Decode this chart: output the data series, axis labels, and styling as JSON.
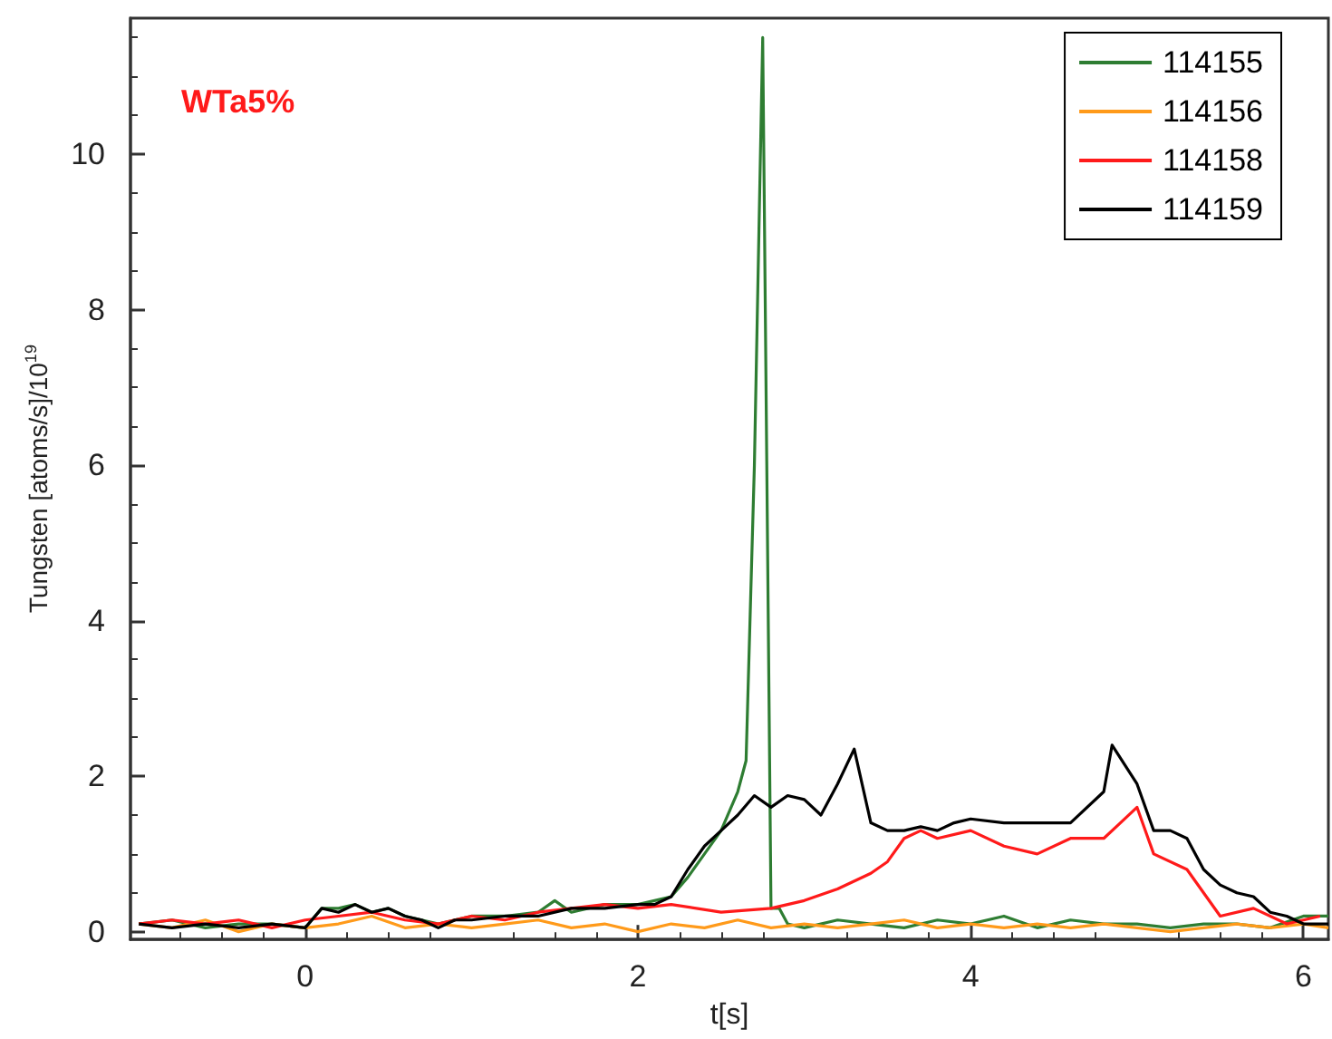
{
  "chart_data": {
    "type": "line",
    "title": "WTa5%",
    "xlabel": "t[s]",
    "ylabel": "Tungsten [atoms/s]/10$^{19}$",
    "xlim": [
      -1.05,
      6.15
    ],
    "ylim": [
      -0.1,
      11.75
    ],
    "xticks": [
      0,
      2,
      4,
      6
    ],
    "yticks": [
      0,
      2,
      4,
      6,
      8,
      10
    ],
    "legend": "top right",
    "grid": false,
    "line_style": "solid",
    "marker": "none",
    "series": [
      {
        "name": "114155",
        "color": "#2e7d32",
        "x": [
          -1,
          -0.8,
          -0.6,
          -0.4,
          -0.2,
          0,
          0.1,
          0.2,
          0.3,
          0.4,
          0.5,
          0.6,
          0.7,
          0.8,
          0.9,
          1.0,
          1.2,
          1.4,
          1.5,
          1.6,
          1.8,
          2.0,
          2.1,
          2.2,
          2.3,
          2.4,
          2.5,
          2.6,
          2.65,
          2.7,
          2.75,
          2.8,
          2.85,
          2.9,
          3.0,
          3.2,
          3.4,
          3.6,
          3.8,
          4.0,
          4.2,
          4.4,
          4.6,
          4.8,
          5.0,
          5.2,
          5.4,
          5.6,
          5.8,
          6.0,
          6.15
        ],
        "values": [
          0.1,
          0.15,
          0.05,
          0.1,
          0.1,
          0.05,
          0.3,
          0.3,
          0.35,
          0.25,
          0.3,
          0.2,
          0.15,
          0.1,
          0.15,
          0.2,
          0.2,
          0.25,
          0.4,
          0.25,
          0.35,
          0.35,
          0.4,
          0.45,
          0.7,
          1.0,
          1.3,
          1.8,
          2.2,
          6.0,
          11.5,
          0.3,
          0.3,
          0.1,
          0.05,
          0.15,
          0.1,
          0.05,
          0.15,
          0.1,
          0.2,
          0.05,
          0.15,
          0.1,
          0.1,
          0.05,
          0.1,
          0.1,
          0.05,
          0.2,
          0.2
        ]
      },
      {
        "name": "114156",
        "color": "#ff9a1a",
        "x": [
          -1,
          -0.8,
          -0.6,
          -0.4,
          -0.2,
          0,
          0.2,
          0.4,
          0.6,
          0.8,
          1.0,
          1.2,
          1.4,
          1.6,
          1.8,
          2.0,
          2.2,
          2.4,
          2.6,
          2.8,
          3.0,
          3.2,
          3.4,
          3.6,
          3.8,
          4.0,
          4.2,
          4.4,
          4.6,
          4.8,
          5.0,
          5.2,
          5.4,
          5.6,
          5.8,
          6.0,
          6.15
        ],
        "values": [
          0.1,
          0.05,
          0.15,
          0.0,
          0.1,
          0.05,
          0.1,
          0.2,
          0.05,
          0.1,
          0.05,
          0.1,
          0.15,
          0.05,
          0.1,
          0.0,
          0.1,
          0.05,
          0.15,
          0.05,
          0.1,
          0.05,
          0.1,
          0.15,
          0.05,
          0.1,
          0.05,
          0.1,
          0.05,
          0.1,
          0.05,
          0.0,
          0.05,
          0.1,
          0.05,
          0.1,
          0.05
        ]
      },
      {
        "name": "114158",
        "color": "#ff1a1a",
        "x": [
          -1,
          -0.8,
          -0.6,
          -0.4,
          -0.2,
          0,
          0.2,
          0.4,
          0.6,
          0.8,
          1.0,
          1.2,
          1.4,
          1.6,
          1.8,
          2.0,
          2.2,
          2.5,
          2.8,
          3.0,
          3.2,
          3.4,
          3.5,
          3.6,
          3.7,
          3.8,
          4.0,
          4.2,
          4.4,
          4.6,
          4.8,
          4.9,
          5.0,
          5.1,
          5.3,
          5.4,
          5.5,
          5.7,
          5.9,
          6.1
        ],
        "values": [
          0.1,
          0.15,
          0.1,
          0.15,
          0.05,
          0.15,
          0.2,
          0.25,
          0.15,
          0.1,
          0.2,
          0.15,
          0.25,
          0.3,
          0.35,
          0.3,
          0.35,
          0.25,
          0.3,
          0.4,
          0.55,
          0.75,
          0.9,
          1.2,
          1.3,
          1.2,
          1.3,
          1.1,
          1.0,
          1.2,
          1.2,
          1.4,
          1.6,
          1.0,
          0.8,
          0.5,
          0.2,
          0.3,
          0.1,
          0.2
        ]
      },
      {
        "name": "114159",
        "color": "#000000",
        "x": [
          -1,
          -0.8,
          -0.6,
          -0.4,
          -0.2,
          0,
          0.1,
          0.2,
          0.3,
          0.4,
          0.5,
          0.6,
          0.7,
          0.8,
          0.9,
          1.0,
          1.2,
          1.4,
          1.6,
          1.8,
          2.0,
          2.1,
          2.2,
          2.3,
          2.4,
          2.5,
          2.6,
          2.7,
          2.8,
          2.9,
          3.0,
          3.1,
          3.2,
          3.3,
          3.4,
          3.5,
          3.6,
          3.7,
          3.8,
          3.9,
          4.0,
          4.2,
          4.4,
          4.6,
          4.8,
          4.85,
          5.0,
          5.1,
          5.2,
          5.3,
          5.4,
          5.5,
          5.6,
          5.7,
          5.8,
          5.9,
          6.0,
          6.15
        ],
        "values": [
          0.1,
          0.05,
          0.1,
          0.05,
          0.1,
          0.05,
          0.3,
          0.25,
          0.35,
          0.25,
          0.3,
          0.2,
          0.15,
          0.05,
          0.15,
          0.15,
          0.2,
          0.2,
          0.3,
          0.3,
          0.35,
          0.35,
          0.45,
          0.8,
          1.1,
          1.3,
          1.5,
          1.75,
          1.6,
          1.75,
          1.7,
          1.5,
          1.9,
          2.35,
          1.4,
          1.3,
          1.3,
          1.35,
          1.3,
          1.4,
          1.45,
          1.4,
          1.4,
          1.4,
          1.8,
          2.4,
          1.9,
          1.3,
          1.3,
          1.2,
          0.8,
          0.6,
          0.5,
          0.45,
          0.25,
          0.2,
          0.1,
          0.1
        ]
      }
    ]
  }
}
